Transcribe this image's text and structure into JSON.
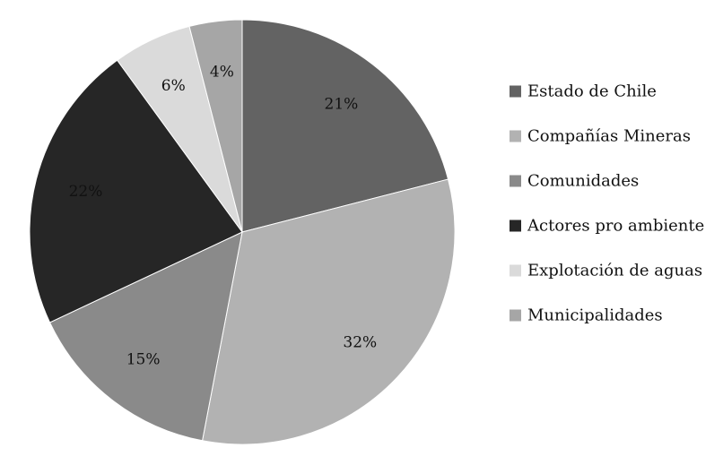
{
  "chart_data": {
    "type": "pie",
    "title": "",
    "legend_position": "right",
    "slices": [
      {
        "label": "Estado de Chile",
        "value": 21,
        "value_label": "21%",
        "color": "#636363"
      },
      {
        "label": "Compañías Mineras",
        "value": 32,
        "value_label": "32%",
        "color": "#b2b2b2"
      },
      {
        "label": "Comunidades",
        "value": 15,
        "value_label": "15%",
        "color": "#8a8a8a"
      },
      {
        "label": "Actores pro ambiente",
        "value": 22,
        "value_label": "22%",
        "color": "#262626"
      },
      {
        "label": "Explotación de aguas",
        "value": 6,
        "value_label": "6%",
        "color": "#dadada"
      },
      {
        "label": "Municipalidades",
        "value": 4,
        "value_label": "4%",
        "color": "#a6a6a6"
      }
    ]
  }
}
